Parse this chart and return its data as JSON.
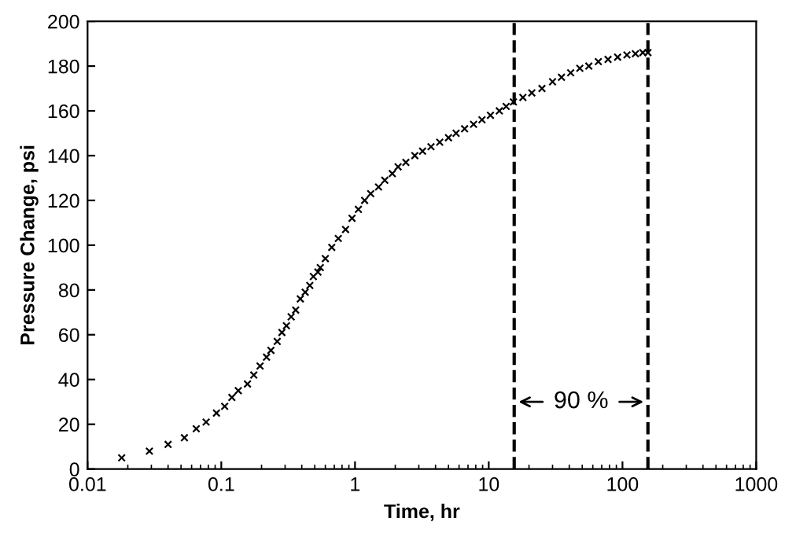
{
  "chart_data": {
    "type": "scatter",
    "xlabel": "Time, hr",
    "ylabel": "Pressure Change, psi",
    "x": [
      0.018,
      0.029,
      0.04,
      0.053,
      0.065,
      0.077,
      0.092,
      0.106,
      0.12,
      0.134,
      0.157,
      0.175,
      0.195,
      0.218,
      0.235,
      0.262,
      0.284,
      0.307,
      0.333,
      0.36,
      0.39,
      0.424,
      0.459,
      0.488,
      0.528,
      0.55,
      0.6,
      0.67,
      0.75,
      0.85,
      0.95,
      1.06,
      1.18,
      1.31,
      1.5,
      1.67,
      1.9,
      2.1,
      2.4,
      2.8,
      3.2,
      3.7,
      4.3,
      5.0,
      5.7,
      6.6,
      7.7,
      8.9,
      10.3,
      12,
      13.5,
      15.3,
      18,
      21,
      25,
      30,
      35,
      41,
      48,
      56,
      66,
      78,
      92,
      108,
      125,
      142,
      155
    ],
    "series": [
      {
        "color": "#000000",
        "values": [
          5,
          8,
          11,
          14,
          18,
          21,
          25,
          28,
          32,
          35,
          38,
          42,
          46,
          50,
          53,
          57,
          61,
          64,
          68,
          71,
          76,
          79,
          82,
          86,
          88,
          90,
          94,
          99,
          103,
          107,
          112,
          116,
          120,
          123,
          126,
          129,
          132,
          135,
          137,
          140,
          142,
          144,
          146,
          148,
          150,
          152,
          154,
          156,
          158,
          160,
          162,
          164,
          166,
          168,
          170,
          173,
          175,
          177,
          179,
          180,
          182,
          183,
          184,
          185,
          185.5,
          186,
          186
        ]
      }
    ],
    "marker": "cross",
    "log": "x",
    "xlim": [
      0.01,
      1000
    ],
    "xticks": [
      0.01,
      0.1,
      1,
      10,
      100,
      1000
    ],
    "ylim": [
      0,
      200
    ],
    "yticks": [
      0,
      20,
      40,
      60,
      80,
      100,
      120,
      140,
      160,
      180,
      200
    ],
    "grid": false,
    "legend": false,
    "ref_lines": [
      {
        "axis": "x",
        "value": 15.5,
        "color": "#000000",
        "line_style": "dashed"
      },
      {
        "axis": "x",
        "value": 155,
        "color": "#000000",
        "line_style": "dashed"
      }
    ],
    "annotations": [
      "90 %"
    ]
  }
}
